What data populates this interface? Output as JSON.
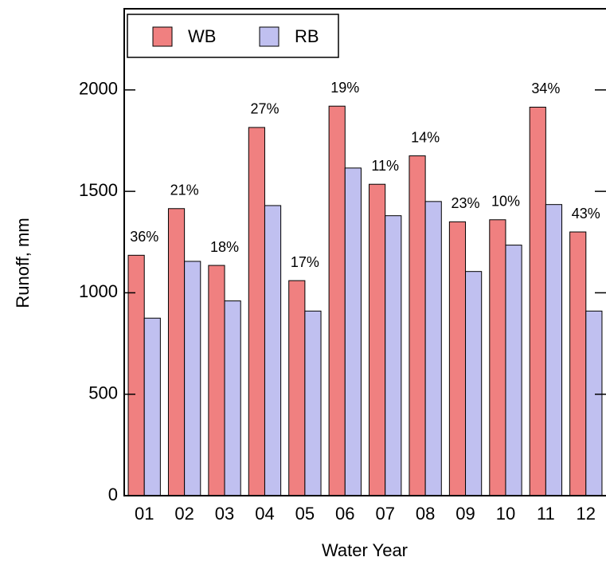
{
  "chart_data": {
    "type": "bar",
    "x_label": "Water Year",
    "y_label": "Runoff, mm",
    "categories": [
      "01",
      "02",
      "03",
      "04",
      "05",
      "06",
      "07",
      "08",
      "09",
      "10",
      "11",
      "12"
    ],
    "series": [
      {
        "name": "WB",
        "color": "#f08080",
        "label_color": "#e00000",
        "values": [
          1185,
          1415,
          1135,
          1815,
          1060,
          1920,
          1535,
          1675,
          1350,
          1360,
          1915,
          1300
        ]
      },
      {
        "name": "RB",
        "color": "#c0c0f0",
        "label_color": "#0000cc",
        "values": [
          875,
          1155,
          960,
          1430,
          910,
          1615,
          1380,
          1450,
          1105,
          1235,
          1435,
          910
        ]
      }
    ],
    "annotations": [
      "36%",
      "21%",
      "18%",
      "27%",
      "17%",
      "19%",
      "11%",
      "14%",
      "23%",
      "10%",
      "34%",
      "43%"
    ],
    "ylim": [
      0,
      2400
    ],
    "yticks": [
      0,
      500,
      1000,
      1500,
      2000
    ],
    "grid": false,
    "legend": "top-left"
  }
}
